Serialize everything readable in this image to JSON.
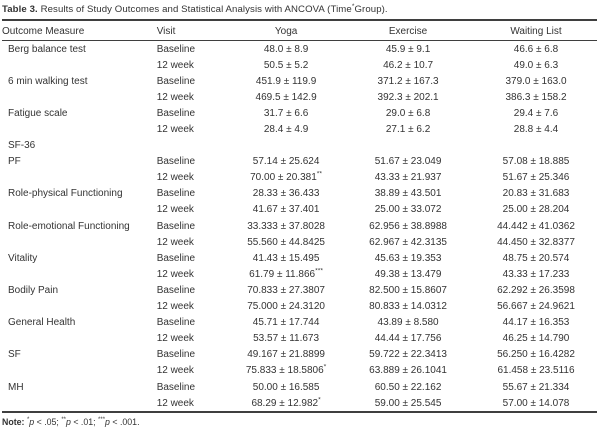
{
  "page": {
    "background": "#ffffff",
    "text_color": "#333333",
    "rule_color": "#3f3f3f"
  },
  "table": {
    "title": {
      "label": "Table 3.",
      "pre": " Results of Study Outcomes and Statistical Analysis with ANCOVA (Time",
      "sup": "*",
      "post": "Group)."
    },
    "columns": [
      "Outcome Measure",
      "Visit",
      "Yoga",
      "Exercise",
      "Waiting List"
    ],
    "rows": [
      {
        "measure": "Berg balance test",
        "visit": "Baseline",
        "yoga": "48.0 ± 8.9",
        "exercise": "45.9 ± 9.1",
        "waiting": "46.6 ± 6.8"
      },
      {
        "measure": "",
        "visit": "12 week",
        "yoga": "50.5 ± 5.2",
        "exercise": "46.2 ± 10.7",
        "waiting": "49.0 ± 6.3"
      },
      {
        "measure": "6 min walking test",
        "visit": "Baseline",
        "yoga": "451.9 ± 119.9",
        "exercise": "371.2 ± 167.3",
        "waiting": "379.0 ± 163.0"
      },
      {
        "measure": "",
        "visit": "12 week",
        "yoga": "469.5 ± 142.9",
        "exercise": "392.3 ± 202.1",
        "waiting": "386.3 ± 158.2"
      },
      {
        "measure": "Fatigue scale",
        "visit": "Baseline",
        "yoga": "31.7 ± 6.6",
        "exercise": "29.0 ± 6.8",
        "waiting": "29.4 ± 7.6"
      },
      {
        "measure": "",
        "visit": "12 week",
        "yoga": "28.4 ± 4.9",
        "exercise": "27.1 ± 6.2",
        "waiting": "28.8 ± 4.4"
      },
      {
        "measure": "SF-36",
        "visit": "",
        "yoga": "",
        "exercise": "",
        "waiting": ""
      },
      {
        "measure": "PF",
        "visit": "Baseline",
        "yoga": "57.14 ± 25.624",
        "exercise": "51.67 ± 23.049",
        "waiting": "57.08 ± 18.885"
      },
      {
        "measure": "",
        "visit": "12 week",
        "yoga": "70.00 ± 20.381**",
        "exercise": "43.33 ± 21.937",
        "waiting": "51.67 ± 25.346"
      },
      {
        "measure": "Role-physical Functioning",
        "visit": "Baseline",
        "yoga": "28.33 ± 36.433",
        "exercise": "38.89 ± 43.501",
        "waiting": "20.83 ± 31.683"
      },
      {
        "measure": "",
        "visit": "12 week",
        "yoga": "41.67 ± 37.401",
        "exercise": "25.00 ± 33.072",
        "waiting": "25.00 ± 28.204"
      },
      {
        "measure": "Role-emotional Functioning",
        "visit": "Baseline",
        "yoga": "33.333 ± 37.8028",
        "exercise": "62.956 ± 38.8988",
        "waiting": "44.442 ± 41.0362"
      },
      {
        "measure": "",
        "visit": "12 week",
        "yoga": "55.560 ± 44.8425",
        "exercise": "62.967 ± 42.3135",
        "waiting": "44.450 ± 32.8377"
      },
      {
        "measure": "Vitality",
        "visit": "Baseline",
        "yoga": "41.43 ± 15.495",
        "exercise": "45.63 ± 19.353",
        "waiting": "48.75 ± 20.574"
      },
      {
        "measure": "",
        "visit": "12 week",
        "yoga": "61.79 ± 11.866***",
        "exercise": "49.38 ± 13.479",
        "waiting": "43.33 ± 17.233"
      },
      {
        "measure": "Bodily Pain",
        "visit": "Baseline",
        "yoga": "70.833 ± 27.3807",
        "exercise": "82.500 ± 15.8607",
        "waiting": "62.292 ± 26.3598"
      },
      {
        "measure": "",
        "visit": "12 week",
        "yoga": "75.000 ± 24.3120",
        "exercise": "80.833 ± 14.0312",
        "waiting": "56.667 ± 24.9621"
      },
      {
        "measure": "General Health",
        "visit": "Baseline",
        "yoga": "45.71 ± 17.744",
        "exercise": "43.89 ± 8.580",
        "waiting": "44.17 ± 16.353"
      },
      {
        "measure": "",
        "visit": "12 week",
        "yoga": "53.57 ± 11.673",
        "exercise": "44.44 ± 17.756",
        "waiting": "46.25 ± 14.790"
      },
      {
        "measure": "SF",
        "visit": "Baseline",
        "yoga": "49.167 ± 21.8899",
        "exercise": "59.722 ± 22.3413",
        "waiting": "56.250 ± 16.4282"
      },
      {
        "measure": "",
        "visit": "12 week",
        "yoga": "75.833 ± 18.5806*",
        "exercise": "63.889 ± 26.1041",
        "waiting": "61.458 ± 23.5116"
      },
      {
        "measure": "MH",
        "visit": "Baseline",
        "yoga": "50.00 ± 16.585",
        "exercise": "60.50 ± 22.162",
        "waiting": "55.67 ± 21.334"
      },
      {
        "measure": "",
        "visit": "12 week",
        "yoga": "68.29 ± 12.982*",
        "exercise": "59.00 ± 25.545",
        "waiting": "57.00 ± 14.078"
      }
    ],
    "note": {
      "label": "Note:",
      "segments": [
        {
          "t": " "
        },
        {
          "sup": "*"
        },
        {
          "i": "p"
        },
        {
          "t": " < .05; "
        },
        {
          "sup": "**"
        },
        {
          "i": "p"
        },
        {
          "t": " < .01; "
        },
        {
          "sup": "***"
        },
        {
          "i": "p"
        },
        {
          "t": " < .001."
        }
      ]
    }
  }
}
